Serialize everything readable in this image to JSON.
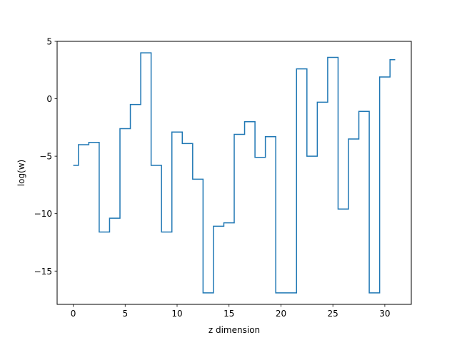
{
  "chart_data": {
    "type": "line",
    "drawstyle": "steps-mid",
    "title": "",
    "xlabel": "z dimension",
    "ylabel": "log(w)",
    "xlim": [
      -1.55,
      32.55
    ],
    "ylim": [
      -17.9,
      5.0
    ],
    "xticks": [
      0,
      5,
      10,
      15,
      20,
      25,
      30
    ],
    "xtick_labels": [
      "0",
      "5",
      "10",
      "15",
      "20",
      "25",
      "30"
    ],
    "yticks": [
      5,
      0,
      -5,
      -10,
      -15
    ],
    "ytick_labels": [
      "5",
      "0",
      "−5",
      "−10",
      "−15"
    ],
    "grid": false,
    "legend": "none",
    "line_color": "#1f77b4",
    "series": [
      {
        "x": [
          0,
          1,
          2,
          3,
          4,
          5,
          6,
          7,
          8,
          9,
          10,
          11,
          12,
          13,
          14,
          15,
          16,
          17,
          18,
          19,
          20,
          21,
          22,
          23,
          24,
          25,
          26,
          27,
          28,
          29,
          30,
          31
        ],
        "values": [
          -5.8,
          -4.0,
          -3.8,
          -11.6,
          -10.4,
          -2.6,
          -0.5,
          4.0,
          -5.8,
          -11.6,
          -2.9,
          -3.9,
          -7.0,
          -16.9,
          -11.1,
          -10.8,
          -3.1,
          -2.0,
          -5.1,
          -3.3,
          -16.9,
          -16.9,
          2.6,
          -5.0,
          -0.3,
          3.6,
          -9.6,
          -3.5,
          -1.1,
          -16.9,
          1.9,
          3.4
        ]
      }
    ]
  }
}
